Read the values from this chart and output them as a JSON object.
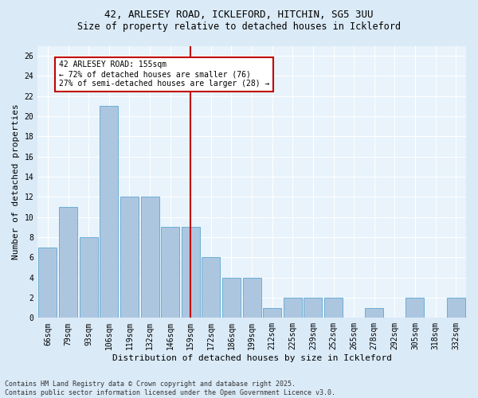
{
  "title1": "42, ARLESEY ROAD, ICKLEFORD, HITCHIN, SG5 3UU",
  "title2": "Size of property relative to detached houses in Ickleford",
  "xlabel": "Distribution of detached houses by size in Ickleford",
  "ylabel": "Number of detached properties",
  "categories": [
    "66sqm",
    "79sqm",
    "93sqm",
    "106sqm",
    "119sqm",
    "132sqm",
    "146sqm",
    "159sqm",
    "172sqm",
    "186sqm",
    "199sqm",
    "212sqm",
    "225sqm",
    "239sqm",
    "252sqm",
    "265sqm",
    "278sqm",
    "292sqm",
    "305sqm",
    "318sqm",
    "332sqm"
  ],
  "values": [
    7,
    11,
    8,
    21,
    12,
    12,
    9,
    9,
    6,
    4,
    4,
    1,
    2,
    2,
    2,
    0,
    1,
    0,
    2,
    0,
    2
  ],
  "bar_color": "#adc6e0",
  "bar_edge_color": "#6baed6",
  "vline_idx": 7,
  "vline_color": "#c00000",
  "ylim": [
    0,
    27
  ],
  "yticks": [
    0,
    2,
    4,
    6,
    8,
    10,
    12,
    14,
    16,
    18,
    20,
    22,
    24,
    26
  ],
  "annotation_title": "42 ARLESEY ROAD: 155sqm",
  "annotation_line1": "← 72% of detached houses are smaller (76)",
  "annotation_line2": "27% of semi-detached houses are larger (28) →",
  "annotation_box_color": "#ffffff",
  "annotation_box_edge": "#c00000",
  "footer1": "Contains HM Land Registry data © Crown copyright and database right 2025.",
  "footer2": "Contains public sector information licensed under the Open Government Licence v3.0.",
  "bg_color": "#daeaf7",
  "plot_bg_color": "#e8f3fb",
  "title_fontsize": 9,
  "subtitle_fontsize": 8.5,
  "axis_fontsize": 8,
  "tick_fontsize": 7,
  "footer_fontsize": 6
}
